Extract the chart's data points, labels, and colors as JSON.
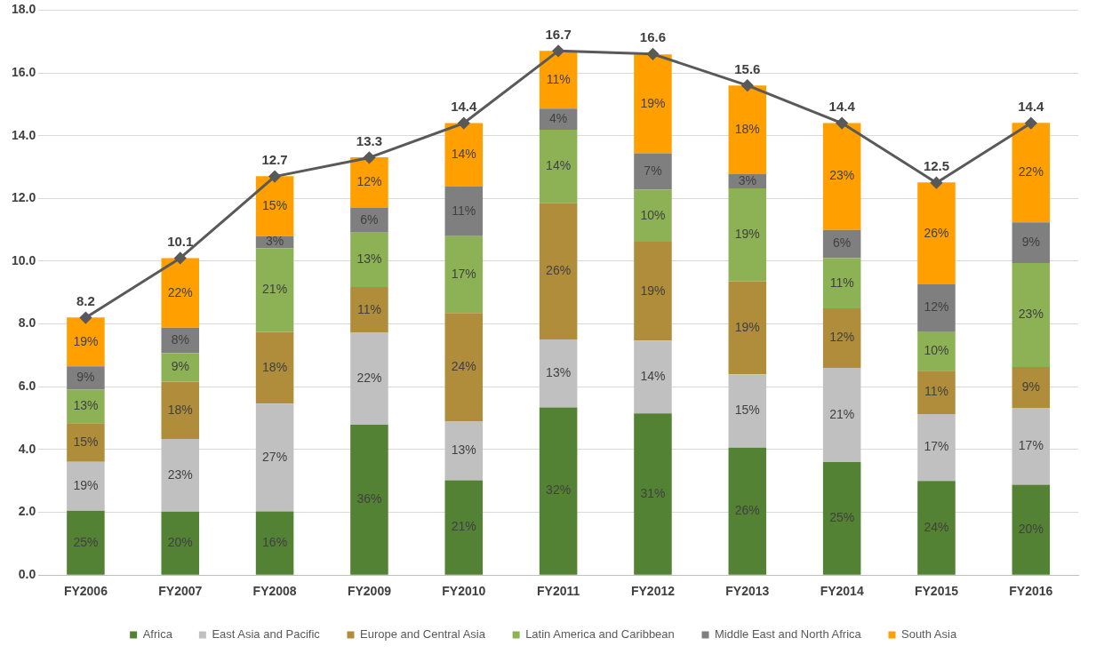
{
  "chart_data": {
    "type": "bar",
    "stacked": true,
    "categories": [
      "FY2006",
      "FY2007",
      "FY2008",
      "FY2009",
      "FY2010",
      "FY2011",
      "FY2012",
      "FY2013",
      "FY2014",
      "FY2015",
      "FY2016"
    ],
    "series": [
      {
        "name": "Africa",
        "color": "#548235",
        "values": [
          2.05,
          2.02,
          2.03,
          4.79,
          3.02,
          5.34,
          5.15,
          4.06,
          3.6,
          3.0,
          2.88
        ]
      },
      {
        "name": "East Asia and Pacific",
        "color": "#c0c0c0",
        "values": [
          1.56,
          2.32,
          3.43,
          2.93,
          1.87,
          2.17,
          2.32,
          2.34,
          3.0,
          2.13,
          2.45
        ]
      },
      {
        "name": "Europe and Central Asia",
        "color": "#b08d3a",
        "values": [
          1.23,
          1.82,
          2.29,
          1.46,
          3.46,
          4.34,
          3.15,
          2.96,
          1.9,
          1.38,
          1.3
        ]
      },
      {
        "name": "Latin America and Caribbean",
        "color": "#8db255",
        "values": [
          1.07,
          0.91,
          2.67,
          1.73,
          2.45,
          2.34,
          1.66,
          2.96,
          1.6,
          1.25,
          3.31
        ]
      },
      {
        "name": "Middle East and North Africa",
        "color": "#7f7f7f",
        "values": [
          0.74,
          0.81,
          0.38,
          0.8,
          1.58,
          0.67,
          1.16,
          0.47,
          0.9,
          1.5,
          1.3
        ]
      },
      {
        "name": "South Asia",
        "color": "#ffa000",
        "values": [
          1.56,
          2.22,
          1.91,
          1.6,
          2.02,
          1.84,
          3.15,
          2.81,
          3.4,
          3.25,
          3.17
        ]
      },
      {
        "type": "line",
        "color": "#595959",
        "values": [
          8.2,
          10.1,
          12.7,
          13.3,
          14.4,
          16.7,
          16.6,
          15.6,
          14.4,
          12.5,
          14.4
        ],
        "value_labels": [
          "8.2",
          "10.1",
          "12.7",
          "13.3",
          "14.4",
          "16.7",
          "16.6",
          "15.6",
          "14.4",
          "12.5",
          "14.4"
        ]
      }
    ],
    "annotations": [
      "25%",
      "19%",
      "15%",
      "13%",
      "9%",
      "19%",
      "20%",
      "23%",
      "18%",
      "9%",
      "8%",
      "22%",
      "16%",
      "27%",
      "18%",
      "21%",
      "3%",
      "15%",
      "36%",
      "22%",
      "11%",
      "13%",
      "6%",
      "12%",
      "21%",
      "13%",
      "24%",
      "17%",
      "11%",
      "14%",
      "32%",
      "13%",
      "26%",
      "14%",
      "4%",
      "11%",
      "31%",
      "14%",
      "19%",
      "10%",
      "7%",
      "19%",
      "26%",
      "15%",
      "19%",
      "19%",
      "3%",
      "18%",
      "25%",
      "21%",
      "12%",
      "11%",
      "6%",
      "23%",
      "24%",
      "17%",
      "11%",
      "10%",
      "12%",
      "26%",
      "20%",
      "17%",
      "9%",
      "23%",
      "9%",
      "22%"
    ],
    "ylim": [
      0,
      18
    ],
    "yticks": [
      {
        "value": 0,
        "label": "0.0"
      },
      {
        "value": 2,
        "label": "2.0"
      },
      {
        "value": 4,
        "label": "4.0"
      },
      {
        "value": 6,
        "label": "6.0"
      },
      {
        "value": 8,
        "label": "8.0"
      },
      {
        "value": 10,
        "label": "10.0"
      },
      {
        "value": 12,
        "label": "12.0"
      },
      {
        "value": 14,
        "label": "14.0"
      },
      {
        "value": 16,
        "label": "16.0"
      },
      {
        "value": 18,
        "label": "18.0"
      }
    ],
    "grid": "y",
    "legend": "bottom",
    "marker": "diamond",
    "line_style": "solid"
  }
}
